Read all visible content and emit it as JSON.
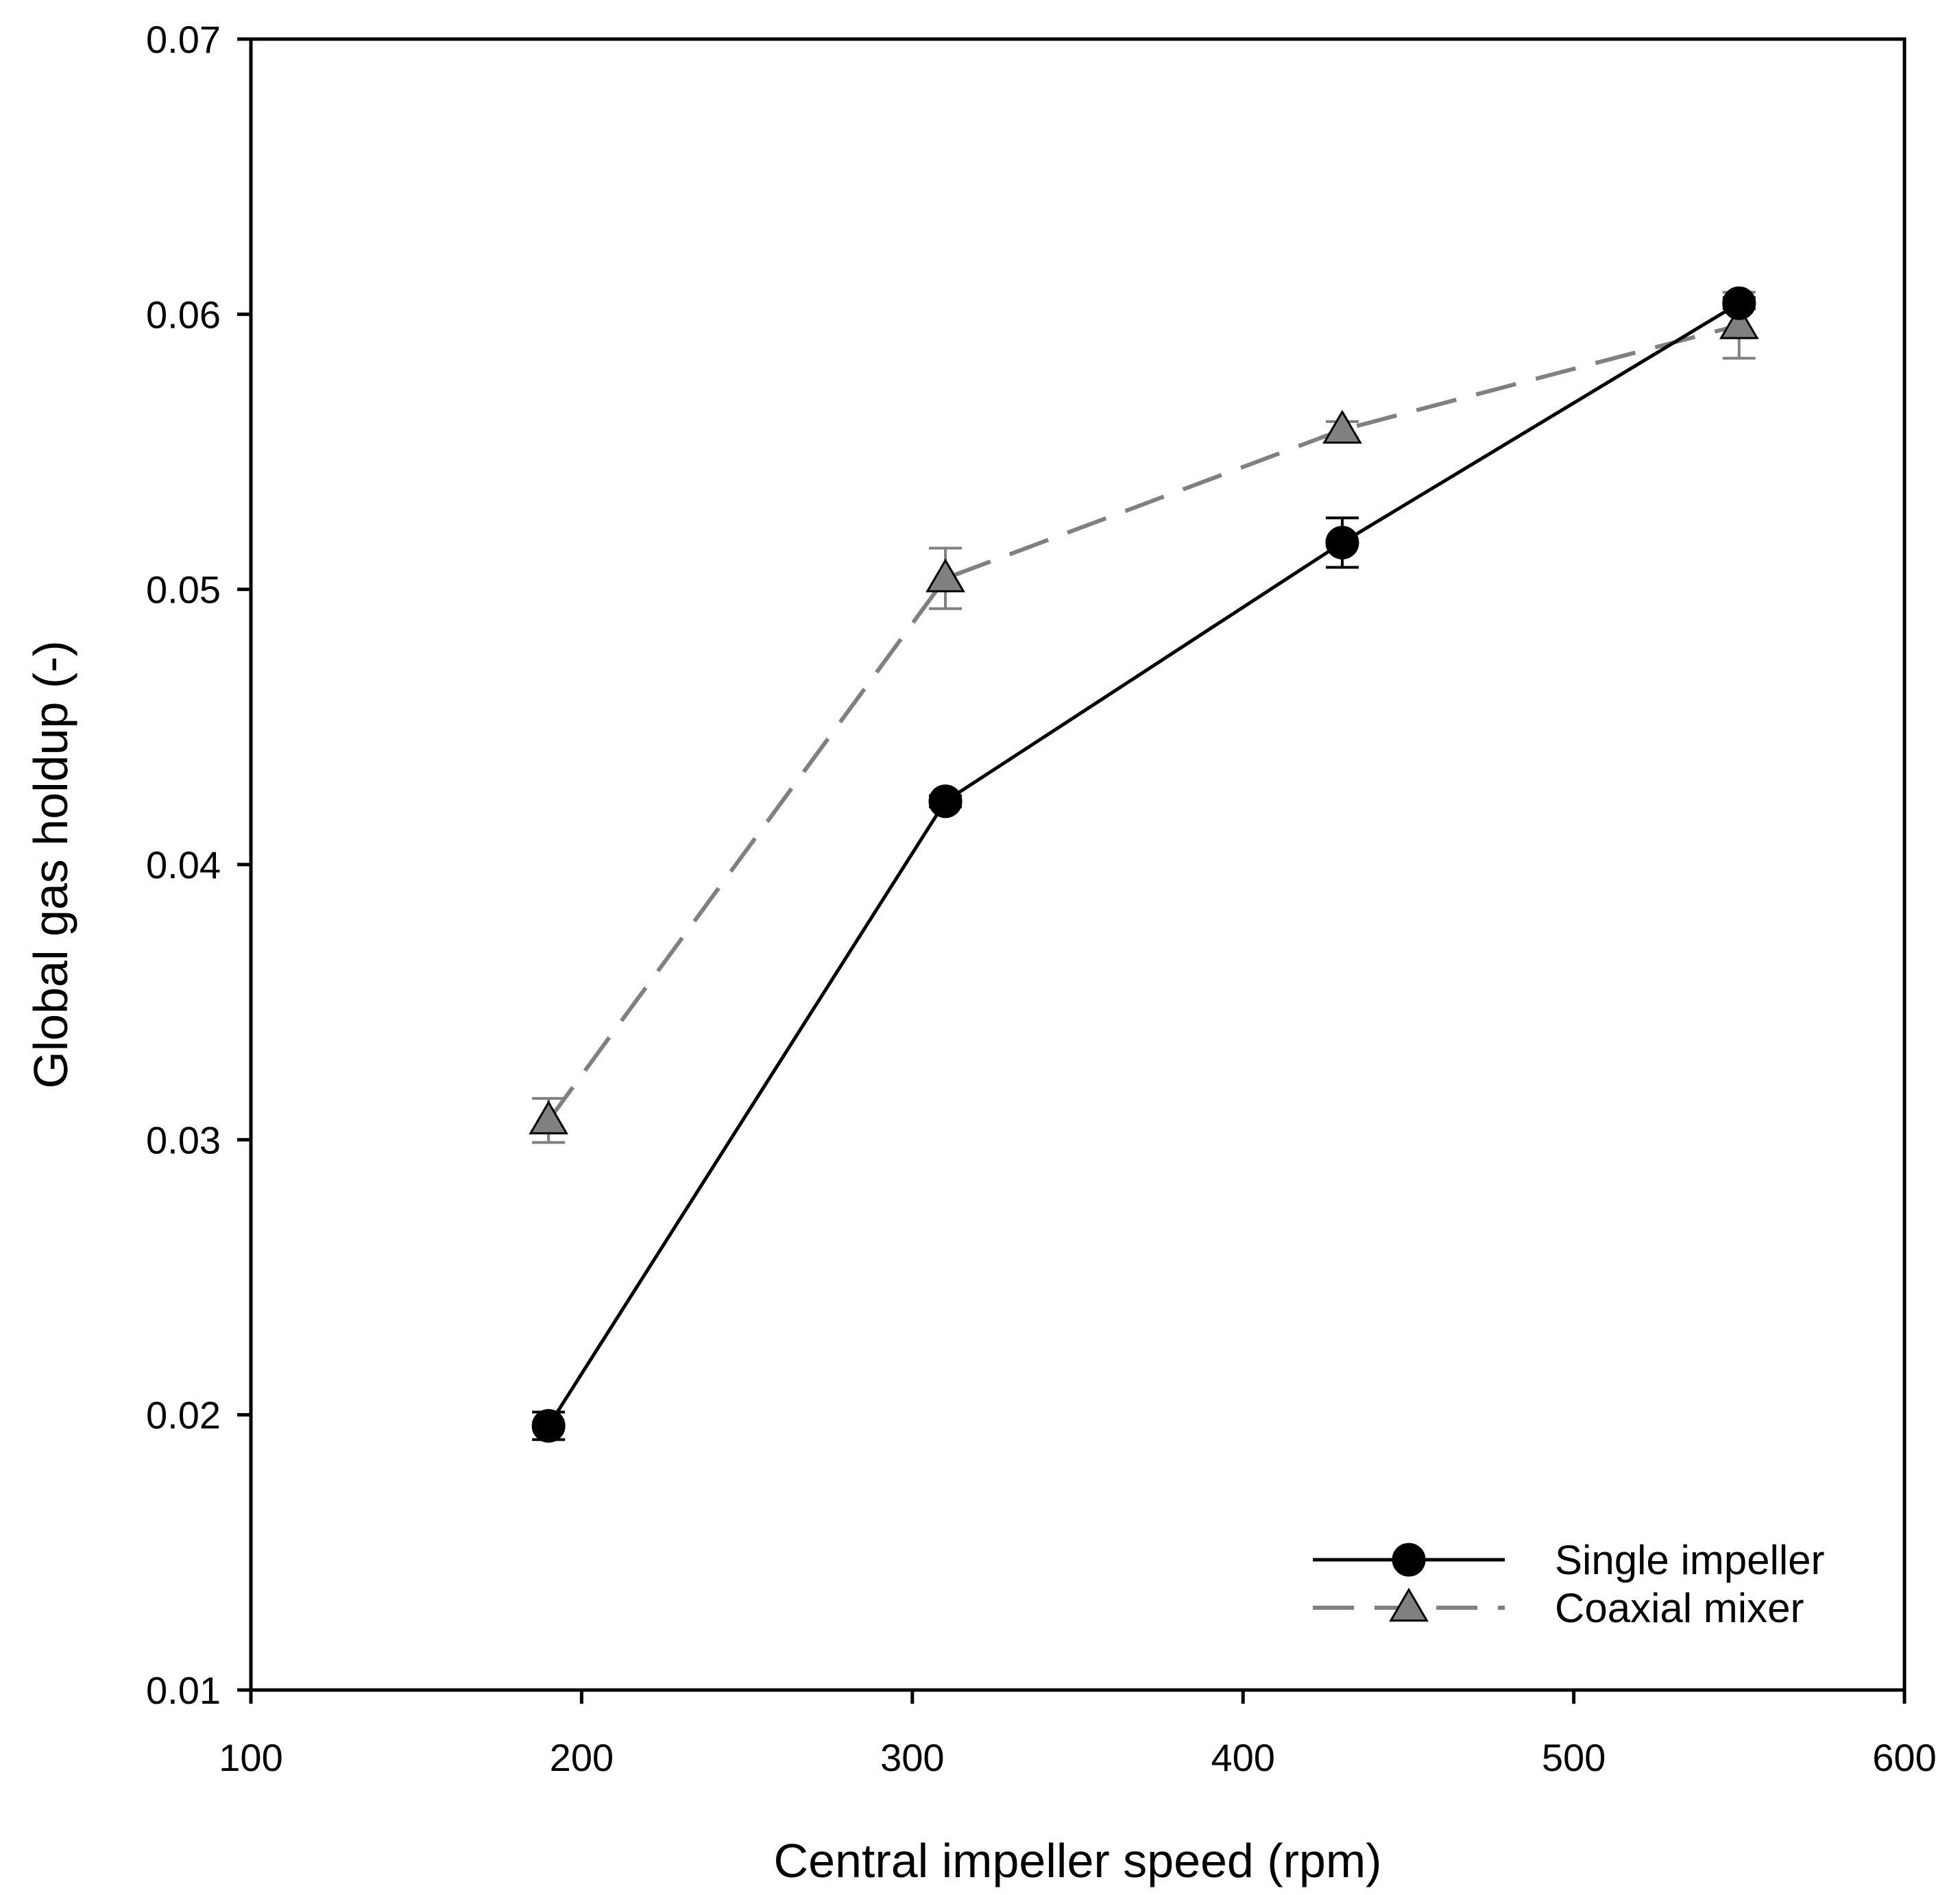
{
  "chart_data": {
    "type": "line",
    "title": "",
    "xlabel": "Central impeller speed (rpm)",
    "ylabel": "Global gas holdup (-)",
    "xlim": [
      100,
      600
    ],
    "ylim": [
      0.01,
      0.07
    ],
    "x_ticks": [
      "100",
      "200",
      "300",
      "400",
      "500",
      "600"
    ],
    "y_ticks": [
      "0.01",
      "0.02",
      "0.03",
      "0.04",
      "0.05",
      "0.06",
      "0.07"
    ],
    "grid": false,
    "legend_position": "bottom-right",
    "series": [
      {
        "name": "Single impeller",
        "marker": "circle",
        "line_style": "solid",
        "color": "#000000",
        "marker_fill": "#000000",
        "x": [
          190,
          310,
          430,
          550
        ],
        "y": [
          0.0196,
          0.0423,
          0.0517,
          0.0604
        ],
        "error": [
          0.0005,
          0.0002,
          0.0009,
          0.0002
        ]
      },
      {
        "name": "Coaxial mixer",
        "marker": "triangle",
        "line_style": "dashed",
        "color": "#808080",
        "marker_fill": "#808080",
        "x": [
          190,
          310,
          430,
          550
        ],
        "y": [
          0.0307,
          0.0504,
          0.0558,
          0.0596
        ],
        "error": [
          0.0008,
          0.0011,
          0.0003,
          0.0012
        ]
      }
    ]
  }
}
